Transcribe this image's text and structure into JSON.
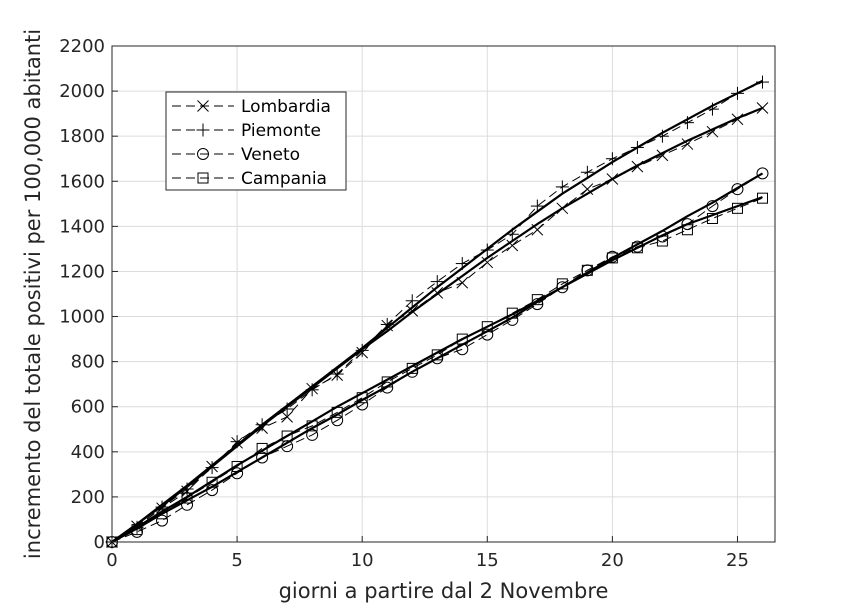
{
  "chart_data": {
    "type": "line",
    "title": "",
    "xlabel": "giorni a partire dal 2 Novembre",
    "ylabel": "incremento del totale positivi per 100,000 abitanti",
    "xlim": [
      0,
      26.5
    ],
    "ylim": [
      0,
      2200
    ],
    "xticks": [
      0,
      5,
      10,
      15,
      20,
      25
    ],
    "yticks": [
      0,
      200,
      400,
      600,
      800,
      1000,
      1200,
      1400,
      1600,
      1800,
      2000,
      2200
    ],
    "grid": true,
    "legend_position": "top-left",
    "x": [
      0,
      1,
      2,
      3,
      4,
      5,
      6,
      7,
      8,
      9,
      10,
      11,
      12,
      13,
      14,
      15,
      16,
      17,
      18,
      19,
      20,
      21,
      22,
      23,
      24,
      25,
      26
    ],
    "series": [
      {
        "name": "Lombardia",
        "marker": "x",
        "values": [
          0,
          70,
          150,
          225,
          335,
          440,
          505,
          555,
          680,
          740,
          840,
          960,
          1025,
          1105,
          1150,
          1240,
          1315,
          1385,
          1480,
          1565,
          1610,
          1665,
          1715,
          1765,
          1820,
          1875,
          1925
        ],
        "fit": [
          0,
          80,
          160,
          245,
          335,
          425,
          515,
          600,
          685,
          770,
          855,
          935,
          1020,
          1100,
          1180,
          1260,
          1335,
          1410,
          1480,
          1545,
          1610,
          1670,
          1725,
          1780,
          1830,
          1880,
          1925
        ]
      },
      {
        "name": "Piemonte",
        "marker": "+",
        "values": [
          0,
          65,
          155,
          235,
          330,
          445,
          520,
          590,
          675,
          745,
          850,
          965,
          1070,
          1155,
          1235,
          1295,
          1365,
          1490,
          1575,
          1640,
          1700,
          1750,
          1800,
          1860,
          1920,
          1990,
          2040
        ],
        "fit": [
          0,
          80,
          165,
          250,
          340,
          430,
          520,
          605,
          690,
          775,
          860,
          950,
          1040,
          1130,
          1215,
          1300,
          1385,
          1465,
          1545,
          1615,
          1685,
          1750,
          1815,
          1875,
          1935,
          1990,
          2045
        ]
      },
      {
        "name": "Veneto",
        "marker": "o",
        "values": [
          0,
          45,
          95,
          165,
          230,
          305,
          375,
          425,
          475,
          540,
          610,
          685,
          755,
          815,
          855,
          920,
          985,
          1055,
          1130,
          1205,
          1265,
          1310,
          1355,
          1410,
          1490,
          1565,
          1635
        ],
        "fit": [
          0,
          60,
          125,
          185,
          245,
          310,
          375,
          440,
          505,
          565,
          630,
          690,
          755,
          815,
          875,
          935,
          995,
          1065,
          1130,
          1195,
          1260,
          1320,
          1380,
          1445,
          1505,
          1570,
          1635
        ]
      },
      {
        "name": "Campania",
        "marker": "s",
        "values": [
          0,
          55,
          125,
          195,
          265,
          335,
          415,
          470,
          515,
          575,
          640,
          710,
          770,
          830,
          900,
          955,
          1015,
          1075,
          1145,
          1205,
          1260,
          1305,
          1335,
          1385,
          1435,
          1480,
          1525
        ],
        "fit": [
          0,
          65,
          135,
          200,
          270,
          340,
          405,
          470,
          535,
          600,
          660,
          720,
          780,
          840,
          900,
          955,
          1010,
          1070,
          1130,
          1190,
          1250,
          1305,
          1360,
          1410,
          1450,
          1490,
          1530
        ]
      }
    ]
  }
}
